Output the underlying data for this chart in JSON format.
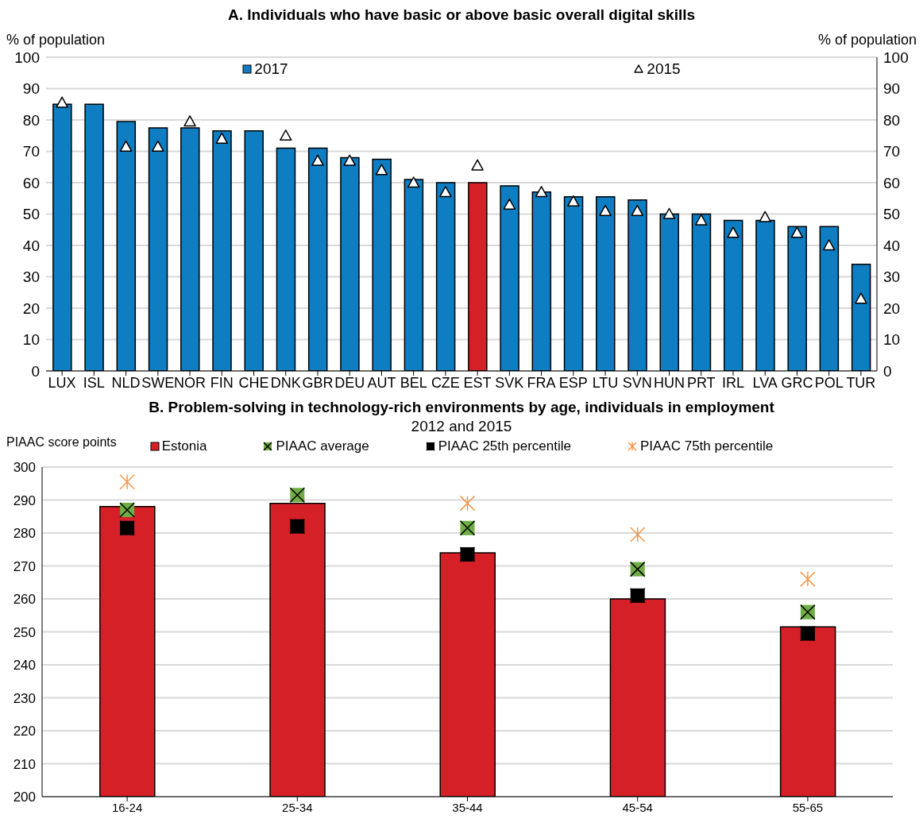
{
  "chart_data": [
    {
      "type": "bar",
      "title": "A. Individuals who have basic or above basic overall digital skills",
      "ylabel": "% of population",
      "y2label": "% of population",
      "categories": [
        "LUX",
        "ISL",
        "NLD",
        "SWE",
        "NOR",
        "FIN",
        "CHE",
        "DNK",
        "GBR",
        "DEU",
        "AUT",
        "BEL",
        "CZE",
        "EST",
        "SVK",
        "FRA",
        "ESP",
        "LTU",
        "SVN",
        "HUN",
        "PRT",
        "IRL",
        "LVA",
        "GRC",
        "POL",
        "TUR"
      ],
      "series": [
        {
          "name": "2017",
          "color": "#0e7dc2",
          "colors": [
            "#0e7dc2",
            "#0e7dc2",
            "#0e7dc2",
            "#0e7dc2",
            "#0e7dc2",
            "#0e7dc2",
            "#0e7dc2",
            "#0e7dc2",
            "#0e7dc2",
            "#0e7dc2",
            "#0e7dc2",
            "#0e7dc2",
            "#0e7dc2",
            "#d62027",
            "#0e7dc2",
            "#0e7dc2",
            "#0e7dc2",
            "#0e7dc2",
            "#0e7dc2",
            "#0e7dc2",
            "#0e7dc2",
            "#0e7dc2",
            "#0e7dc2",
            "#0e7dc2",
            "#0e7dc2",
            "#0e7dc2"
          ],
          "values": [
            85,
            85,
            79.5,
            77.5,
            77.5,
            76.5,
            76.5,
            71,
            71,
            68,
            67.5,
            61,
            60,
            60,
            59,
            57,
            55.5,
            55.5,
            54.5,
            50,
            50,
            48,
            48,
            46,
            46,
            34
          ]
        },
        {
          "name": "2015",
          "type": "scatter",
          "marker": "triangle",
          "color": "#ffffff",
          "values": [
            85.5,
            null,
            71.5,
            71.5,
            79.5,
            74,
            null,
            75,
            67,
            67,
            64,
            60,
            57,
            65.5,
            53,
            57,
            54,
            51,
            51,
            50,
            48,
            44,
            49,
            44,
            40,
            23
          ]
        }
      ],
      "ylim": [
        0,
        100
      ],
      "yticks": [
        0,
        10,
        20,
        30,
        40,
        50,
        60,
        70,
        80,
        90,
        100
      ],
      "y2lim": [
        0,
        100
      ],
      "y2ticks": [
        0,
        10,
        20,
        30,
        40,
        50,
        60,
        70,
        80,
        90,
        100
      ],
      "grid": "y",
      "legend": "top"
    },
    {
      "type": "bar",
      "title": "B. Problem-solving in technology-rich environments by age, individuals in employment",
      "subtitle": "2012 and 2015",
      "ylabel": "PIAAC score points",
      "categories": [
        "16-24",
        "25-34",
        "35-44",
        "45-54",
        "55-65"
      ],
      "series": [
        {
          "name": "Estonia",
          "color": "#d62027",
          "values": [
            288,
            289,
            274,
            260,
            251.5
          ]
        },
        {
          "name": "PIAAC average",
          "type": "scatter",
          "marker": "square",
          "color": "#70ad47",
          "values": [
            287,
            291.5,
            281.5,
            269,
            256
          ]
        },
        {
          "name": "PIAAC 25th percentile",
          "type": "scatter",
          "marker": "square",
          "color": "#000000",
          "values": [
            281.5,
            282,
            273.5,
            261,
            249.5
          ]
        },
        {
          "name": "PIAAC 75th percentile",
          "type": "scatter",
          "marker": "cross",
          "color": "#f79646",
          "values": [
            295.5,
            null,
            289,
            279.5,
            266
          ]
        }
      ],
      "ylim": [
        200,
        300
      ],
      "yticks": [
        200,
        210,
        220,
        230,
        240,
        250,
        260,
        270,
        280,
        290,
        300
      ],
      "grid": "y",
      "legend": "top"
    }
  ]
}
